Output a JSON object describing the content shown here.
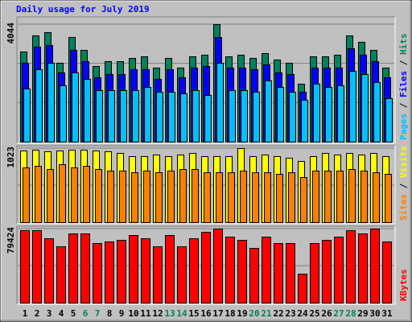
{
  "chart_data": [
    {
      "type": "bar",
      "title": "Daily usage for July 2019",
      "ylim": [
        0,
        4044
      ],
      "yticks": [
        4044
      ],
      "grid": true,
      "series": [
        {
          "name": "Hits",
          "color": "#00805c",
          "values": [
            3102,
            3656,
            3767,
            2714,
            3601,
            3158,
            2604,
            2770,
            2770,
            2881,
            2936,
            2548,
            2881,
            2548,
            2936,
            2992,
            4044,
            2936,
            2992,
            2881,
            3047,
            2825,
            2714,
            1994,
            2936,
            2936,
            2992,
            3656,
            3435,
            3158,
            2548
          ]
        },
        {
          "name": "Files",
          "color": "#0000ff",
          "values": [
            2715,
            3269,
            3324,
            2382,
            3158,
            2770,
            2216,
            2327,
            2327,
            2493,
            2493,
            2161,
            2493,
            2216,
            2548,
            2604,
            3601,
            2548,
            2548,
            2493,
            2659,
            2382,
            2327,
            1717,
            2548,
            2548,
            2548,
            3213,
            2992,
            2770,
            2216
          ]
        },
        {
          "name": "Pages",
          "color": "#00c0ff",
          "values": [
            1828,
            2493,
            2714,
            1939,
            2382,
            2161,
            1773,
            1773,
            1773,
            1773,
            1884,
            1717,
            1717,
            1662,
            1773,
            1607,
            2714,
            1773,
            1773,
            1717,
            2105,
            1884,
            1717,
            1440,
            1994,
            1884,
            1939,
            2438,
            2327,
            2050,
            1496
          ]
        }
      ]
    },
    {
      "type": "bar",
      "ylim": [
        0,
        1023
      ],
      "yticks": [
        1023
      ],
      "grid": true,
      "series": [
        {
          "name": "Visits",
          "color": "#ffff00",
          "values": [
            990,
            1001,
            979,
            990,
            1001,
            1001,
            990,
            979,
            956,
            912,
            912,
            934,
            912,
            934,
            956,
            912,
            912,
            912,
            1023,
            912,
            934,
            912,
            890,
            845,
            912,
            956,
            934,
            956,
            934,
            956,
            912
          ]
        },
        {
          "name": "Sites",
          "color": "#ff8000",
          "values": [
            756,
            778,
            734,
            801,
            756,
            778,
            734,
            712,
            712,
            689,
            712,
            689,
            712,
            734,
            734,
            689,
            689,
            689,
            712,
            689,
            689,
            667,
            689,
            623,
            712,
            712,
            712,
            734,
            712,
            689,
            667
          ]
        }
      ]
    },
    {
      "type": "bar",
      "ylim": [
        0,
        79424
      ],
      "yticks": [
        79424
      ],
      "grid": true,
      "categories": [
        "1",
        "2",
        "3",
        "4",
        "5",
        "6",
        "7",
        "8",
        "9",
        "10",
        "11",
        "12",
        "13",
        "14",
        "15",
        "16",
        "17",
        "18",
        "19",
        "20",
        "21",
        "22",
        "23",
        "24",
        "25",
        "26",
        "27",
        "28",
        "29",
        "30",
        "31"
      ],
      "category_colors": [
        "#000000",
        "#000000",
        "#000000",
        "#000000",
        "#000000",
        "#00805c",
        "#00805c",
        "#000000",
        "#000000",
        "#000000",
        "#000000",
        "#000000",
        "#00805c",
        "#00805c",
        "#000000",
        "#000000",
        "#000000",
        "#000000",
        "#000000",
        "#00805c",
        "#00805c",
        "#000000",
        "#000000",
        "#000000",
        "#000000",
        "#000000",
        "#00805c",
        "#00805c",
        "#000000",
        "#000000",
        "#000000"
      ],
      "series": [
        {
          "name": "KBytes",
          "color": "#ff0000",
          "values": [
            77697,
            77697,
            69064,
            60431,
            74244,
            74244,
            63884,
            65611,
            67337,
            72517,
            69064,
            60431,
            72517,
            60431,
            69064,
            75970,
            79424,
            70791,
            67337,
            58704,
            70791,
            63884,
            63884,
            31079,
            63884,
            67337,
            70791,
            77697,
            74244,
            79424,
            65611
          ]
        }
      ]
    }
  ]
}
